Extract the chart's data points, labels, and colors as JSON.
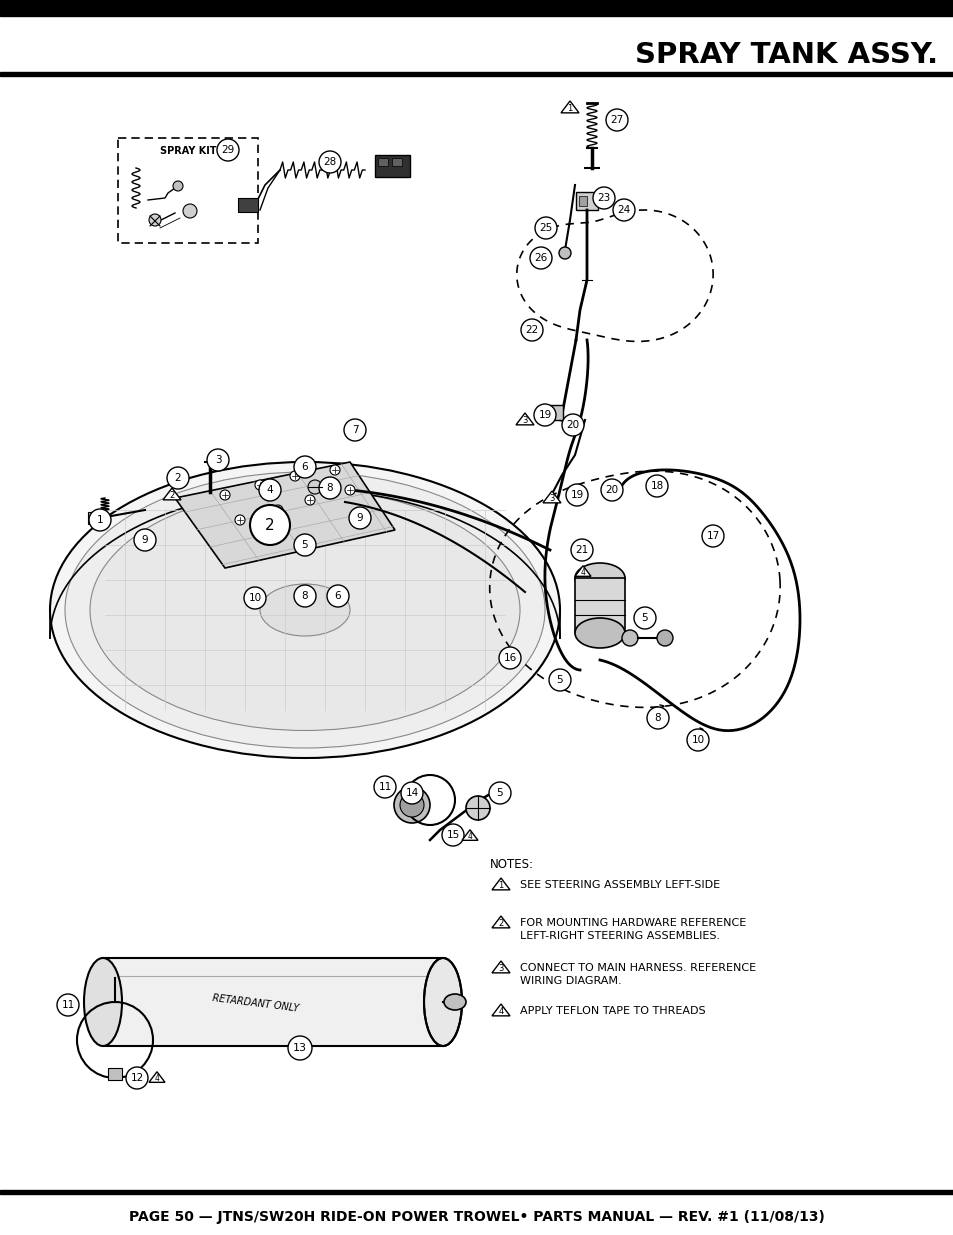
{
  "title": "SPRAY TANK ASSY.",
  "footer": "PAGE 50 — JTNS/SW20H RIDE-ON POWER TROWEL• PARTS MANUAL — REV. #1 (11/08/13)",
  "notes_header": "NOTES:",
  "notes": [
    {
      "num": "1",
      "text": "SEE STEERING ASSEMBLY LEFT-SIDE"
    },
    {
      "num": "2",
      "text": "FOR MOUNTING HARDWARE REFERENCE\nLEFT-RIGHT STEERING ASSEMBLIES."
    },
    {
      "num": "3",
      "text": "CONNECT TO MAIN HARNESS. REFERENCE\nWIRING DIAGRAM."
    },
    {
      "num": "4",
      "text": "APPLY TEFLON TAPE TO THREADS"
    }
  ],
  "bg_color": "#ffffff",
  "fig_width": 9.54,
  "fig_height": 12.35,
  "dpi": 100
}
